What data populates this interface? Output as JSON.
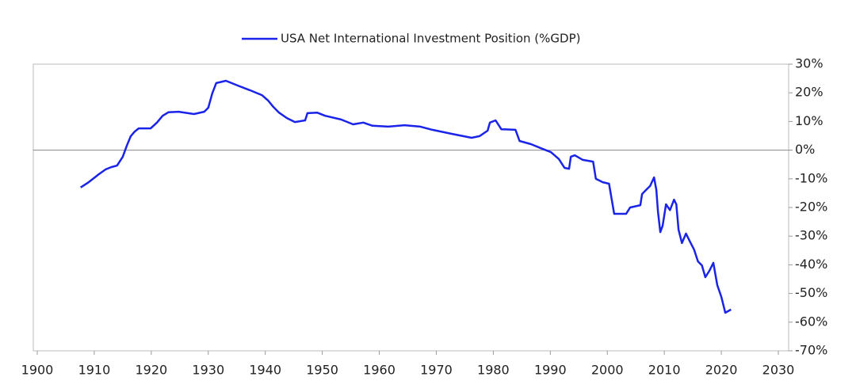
{
  "chart_data": {
    "type": "line",
    "series": [
      {
        "name": "USA Net International Investment Position (%GDP)",
        "color": "#1a23e8",
        "x": [
          1907.6,
          1908.8,
          1909.9,
          1910.8,
          1912,
          1913,
          1914,
          1915,
          1915.7,
          1916.4,
          1917.1,
          1917.8,
          1919.9,
          1921,
          1922,
          1923,
          1924.8,
          1927.5,
          1929.3,
          1930,
          1930.7,
          1931.4,
          1933.1,
          1935.2,
          1937.3,
          1939.4,
          1940.5,
          1941.4,
          1942.4,
          1943.8,
          1945.2,
          1947,
          1947.4,
          1949.1,
          1950.5,
          1953.3,
          1955.4,
          1957.2,
          1958.8,
          1961.6,
          1964.4,
          1967.2,
          1969.3,
          1972.7,
          1976.2,
          1977.6,
          1979,
          1979.4,
          1980.4,
          1981.4,
          1983.9,
          1984.6,
          1986.6,
          1988.7,
          1990.1,
          1991.5,
          1992.5,
          1993.3,
          1993.6,
          1994.3,
          1995.7,
          1997.5,
          1998,
          1999.2,
          2000.3,
          2001.2,
          2003.3,
          2004,
          2005.8,
          2006.1,
          2006.8,
          2007.5,
          2008.2,
          2008.6,
          2008.9,
          2009.3,
          2009.7,
          2010.3,
          2011,
          2011.7,
          2012.1,
          2012.5,
          2013.1,
          2013.8,
          2014.5,
          2015.2,
          2015.9,
          2016.6,
          2017.2,
          2017.9,
          2018.6,
          2019.3,
          2020,
          2020.7,
          2021.7
        ],
        "values": [
          -13,
          -11.5,
          -9.8,
          -8.4,
          -6.7,
          -5.9,
          -5.4,
          -2.3,
          1.5,
          4.9,
          6.5,
          7.6,
          7.6,
          9.6,
          12,
          13.2,
          13.4,
          12.6,
          13.4,
          14.8,
          19.8,
          23.4,
          24.2,
          22.5,
          20.9,
          19.2,
          17.3,
          15.1,
          13.1,
          11.2,
          9.8,
          10.4,
          12.9,
          13.1,
          12,
          10.7,
          9,
          9.6,
          8.5,
          8.2,
          8.7,
          8.2,
          7.1,
          5.7,
          4.3,
          4.9,
          6.8,
          9.6,
          10.4,
          7.3,
          7.1,
          3.2,
          2.1,
          0.4,
          -0.7,
          -3.1,
          -6.2,
          -6.5,
          -2.3,
          -1.8,
          -3.4,
          -4,
          -10,
          -11.2,
          -11.7,
          -22.2,
          -22.2,
          -20,
          -19.2,
          -15.3,
          -13.9,
          -12.5,
          -9.5,
          -13.9,
          -21.6,
          -28.6,
          -26.4,
          -18.9,
          -20.9,
          -17.3,
          -18.9,
          -27.7,
          -32.4,
          -29.1,
          -31.9,
          -34.6,
          -38.8,
          -40.2,
          -44.3,
          -42.1,
          -39.3,
          -47.1,
          -51.2,
          -56.7,
          -55.6
        ]
      }
    ],
    "xlim": [
      1900,
      2030
    ],
    "xticks": [
      1900,
      1910,
      1920,
      1930,
      1940,
      1950,
      1960,
      1970,
      1980,
      1990,
      2000,
      2010,
      2020,
      2030
    ],
    "ylim": [
      -70,
      30
    ],
    "yticks": [
      {
        "value": 30,
        "label": "30%"
      },
      {
        "value": 20,
        "label": "20%"
      },
      {
        "value": 10,
        "label": "10%"
      },
      {
        "value": 0,
        "label": "0%"
      },
      {
        "value": -10,
        "label": "-10%"
      },
      {
        "value": -20,
        "label": "-20%"
      },
      {
        "value": -30,
        "label": "-30%"
      },
      {
        "value": -40,
        "label": "-40%"
      },
      {
        "value": -50,
        "label": "-50%"
      },
      {
        "value": -60,
        "label": "-60%"
      },
      {
        "value": -70,
        "label": "-70%"
      }
    ],
    "legend": "top"
  }
}
